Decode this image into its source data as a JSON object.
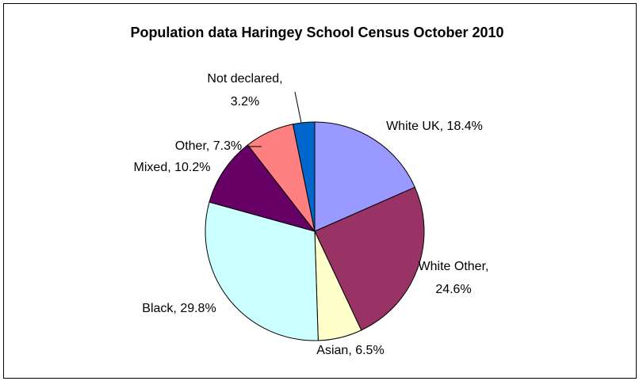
{
  "chart_data": {
    "type": "pie",
    "title": "Population data Haringey School Census October 2010",
    "values": [
      18.4,
      24.6,
      6.5,
      29.8,
      10.2,
      7.3,
      3.2
    ],
    "value_labels": [
      [
        "White UK, 18.4%"
      ],
      [
        "White Other,",
        "24.6%"
      ],
      [
        "Asian, 6.5%"
      ],
      [
        "Black, 29.8%"
      ],
      [
        "Mixed, 10.2%"
      ],
      [
        "Other, 7.3%"
      ],
      [
        "Not declared,",
        "3.2%"
      ]
    ],
    "colors": [
      "#9999ff",
      "#993366",
      "#ffffcc",
      "#ccffff",
      "#660066",
      "#ff8080",
      "#0066cc"
    ]
  }
}
